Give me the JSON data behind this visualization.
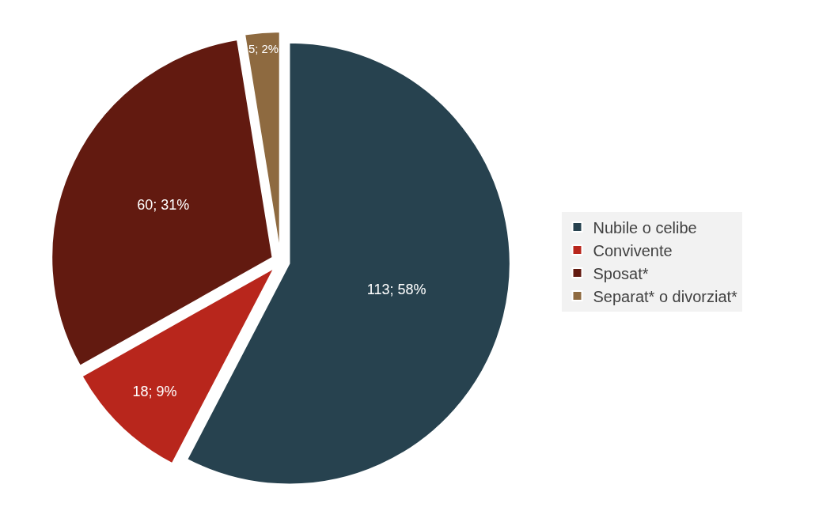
{
  "chart_data": {
    "type": "pie",
    "categories": [
      "Nubile o celibe",
      "Convivente",
      "Sposat*",
      "Separat* o divorziat*"
    ],
    "values": [
      113,
      18,
      60,
      5
    ],
    "colors": [
      "#27424f",
      "#b8261c",
      "#621a10",
      "#8e6a40"
    ],
    "value_labels": [
      "113; 58%",
      "18; 9%",
      "60; 31%",
      "5; 2%"
    ],
    "legend": "right"
  }
}
